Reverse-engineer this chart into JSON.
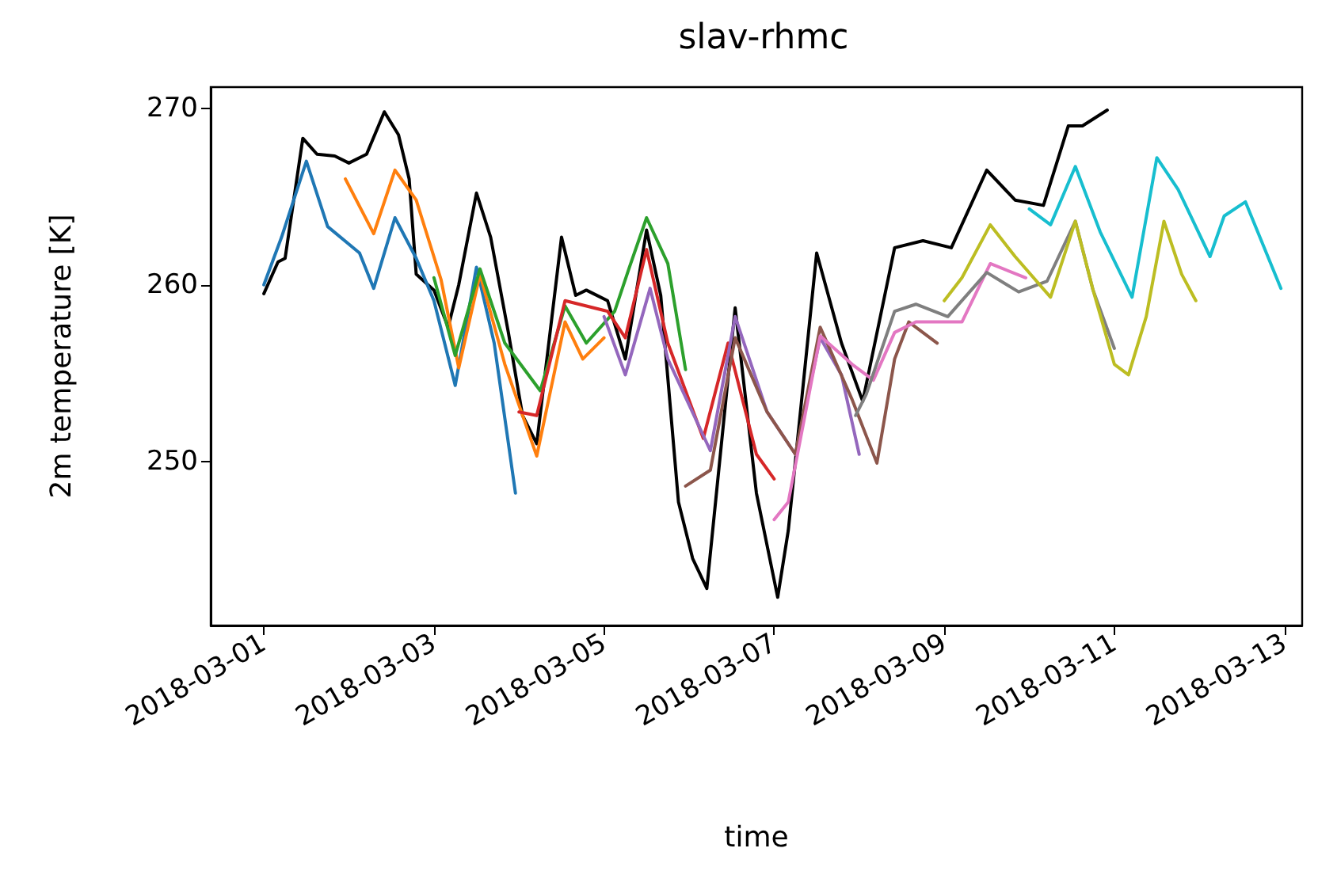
{
  "chart_data": {
    "type": "line",
    "title": "slav-rhmc",
    "xlabel": "time",
    "ylabel": "2m temperature [K]",
    "xlim": [
      "2018-02-28T09:00",
      "2018-03-13T05:00"
    ],
    "xticks": [
      "2018-03-01",
      "2018-03-03",
      "2018-03-05",
      "2018-03-07",
      "2018-03-09",
      "2018-03-11",
      "2018-03-13"
    ],
    "ylim": [
      240.7,
      271.2
    ],
    "yticks": [
      250,
      260,
      270
    ],
    "grid": false,
    "marker": "none",
    "line_style": "solid",
    "series": [
      {
        "color": "#000000",
        "x": [
          "2018-03-01T00:00",
          "2018-03-01T04:00",
          "2018-03-01T06:00",
          "2018-03-01T11:00",
          "2018-03-01T15:00",
          "2018-03-01T20:00",
          "2018-03-02T00:00",
          "2018-03-02T05:00",
          "2018-03-02T10:00",
          "2018-03-02T14:00",
          "2018-03-02T17:00",
          "2018-03-02T19:00",
          "2018-03-03T00:00",
          "2018-03-03T04:00",
          "2018-03-03T07:00",
          "2018-03-03T12:00",
          "2018-03-03T16:00",
          "2018-03-03T21:00",
          "2018-03-04T01:00",
          "2018-03-04T05:00",
          "2018-03-04T12:00",
          "2018-03-04T16:00",
          "2018-03-04T19:00",
          "2018-03-05T01:00",
          "2018-03-05T06:00",
          "2018-03-05T12:00",
          "2018-03-05T16:00",
          "2018-03-05T21:00",
          "2018-03-06T01:00",
          "2018-03-06T05:00",
          "2018-03-06T13:00",
          "2018-03-06T19:00",
          "2018-03-07T01:00",
          "2018-03-07T04:00",
          "2018-03-07T12:00",
          "2018-03-07T19:00",
          "2018-03-08T01:00",
          "2018-03-08T10:00",
          "2018-03-08T18:00",
          "2018-03-09T02:00",
          "2018-03-09T12:00",
          "2018-03-09T20:00",
          "2018-03-10T04:00",
          "2018-03-10T11:00",
          "2018-03-10T15:00",
          "2018-03-10T22:00"
        ],
        "values": [
          259.5,
          261.3,
          261.5,
          268.3,
          267.4,
          267.3,
          266.9,
          267.4,
          269.8,
          268.5,
          266.0,
          260.6,
          259.7,
          257.6,
          260.0,
          265.2,
          262.7,
          257.3,
          252.6,
          251.0,
          262.7,
          259.4,
          259.7,
          259.1,
          255.8,
          263.1,
          259.4,
          247.7,
          244.5,
          242.8,
          258.7,
          248.2,
          242.3,
          246.1,
          261.8,
          256.7,
          253.4,
          262.1,
          262.5,
          262.1,
          266.5,
          264.8,
          264.5,
          269.0,
          269.0,
          269.9
        ]
      },
      {
        "color": "#1f77b4",
        "x": [
          "2018-03-01T00:00",
          "2018-03-01T05:00",
          "2018-03-01T12:00",
          "2018-03-01T18:00",
          "2018-03-02T03:00",
          "2018-03-02T07:00",
          "2018-03-02T13:00",
          "2018-03-02T19:00",
          "2018-03-03T00:00",
          "2018-03-03T06:00",
          "2018-03-03T12:00",
          "2018-03-03T17:00",
          "2018-03-03T23:00"
        ],
        "values": [
          260.0,
          262.7,
          267.0,
          263.3,
          261.8,
          259.8,
          263.8,
          261.5,
          259.1,
          254.3,
          261.0,
          256.7,
          248.2
        ]
      },
      {
        "color": "#ff7f0e",
        "x": [
          "2018-03-01T23:00",
          "2018-03-02T07:00",
          "2018-03-02T13:00",
          "2018-03-02T19:00",
          "2018-03-03T02:00",
          "2018-03-03T07:00",
          "2018-03-03T13:00",
          "2018-03-03T20:00",
          "2018-03-04T05:00",
          "2018-03-04T13:00",
          "2018-03-04T18:00",
          "2018-03-05T00:00"
        ],
        "values": [
          266.0,
          262.9,
          266.5,
          264.8,
          260.3,
          255.3,
          260.6,
          255.5,
          250.3,
          257.9,
          255.8,
          257.0
        ]
      },
      {
        "color": "#2ca02c",
        "x": [
          "2018-03-03T00:00",
          "2018-03-03T06:00",
          "2018-03-03T13:00",
          "2018-03-03T20:00",
          "2018-03-04T06:00",
          "2018-03-04T13:00",
          "2018-03-04T19:00",
          "2018-03-05T03:00",
          "2018-03-05T07:00",
          "2018-03-05T12:00",
          "2018-03-05T18:00",
          "2018-03-05T23:00"
        ],
        "values": [
          260.4,
          256.0,
          260.9,
          256.7,
          254.0,
          258.8,
          256.7,
          258.5,
          260.9,
          263.8,
          261.2,
          255.2
        ]
      },
      {
        "color": "#d62728",
        "x": [
          "2018-03-04T00:00",
          "2018-03-04T05:00",
          "2018-03-04T13:00",
          "2018-03-05T01:00",
          "2018-03-05T06:00",
          "2018-03-05T12:00",
          "2018-03-05T18:00",
          "2018-03-06T04:00",
          "2018-03-06T11:00",
          "2018-03-06T19:00",
          "2018-03-07T00:00"
        ],
        "values": [
          252.8,
          252.6,
          259.1,
          258.5,
          257.0,
          262.0,
          256.7,
          251.3,
          256.7,
          250.4,
          249.0
        ]
      },
      {
        "color": "#9467bd",
        "x": [
          "2018-03-05T00:00",
          "2018-03-05T06:00",
          "2018-03-05T13:00",
          "2018-03-05T18:00",
          "2018-03-06T06:00",
          "2018-03-06T13:00",
          "2018-03-06T22:00",
          "2018-03-07T06:00",
          "2018-03-07T13:00",
          "2018-03-07T19:00",
          "2018-03-08T00:00"
        ],
        "values": [
          258.2,
          254.9,
          259.8,
          255.8,
          250.6,
          258.2,
          252.8,
          250.4,
          257.0,
          254.9,
          250.4
        ]
      },
      {
        "color": "#8c564b",
        "x": [
          "2018-03-05T23:00",
          "2018-03-06T06:00",
          "2018-03-06T13:00",
          "2018-03-06T22:00",
          "2018-03-07T06:00",
          "2018-03-07T13:00",
          "2018-03-07T22:00",
          "2018-03-08T05:00",
          "2018-03-08T10:00",
          "2018-03-08T14:00",
          "2018-03-08T22:00"
        ],
        "values": [
          248.6,
          249.5,
          257.0,
          252.8,
          250.4,
          257.6,
          253.5,
          249.9,
          255.8,
          257.9,
          256.7
        ]
      },
      {
        "color": "#e377c2",
        "x": [
          "2018-03-07T00:00",
          "2018-03-07T04:00",
          "2018-03-07T13:00",
          "2018-03-07T22:00",
          "2018-03-08T04:00",
          "2018-03-08T10:00",
          "2018-03-08T16:00",
          "2018-03-09T05:00",
          "2018-03-09T13:00",
          "2018-03-09T23:00"
        ],
        "values": [
          246.7,
          247.7,
          257.1,
          255.5,
          254.6,
          257.3,
          257.9,
          257.9,
          261.2,
          260.4
        ]
      },
      {
        "color": "#7f7f7f",
        "x": [
          "2018-03-07T23:00",
          "2018-03-08T02:00",
          "2018-03-08T10:00",
          "2018-03-08T16:00",
          "2018-03-09T01:00",
          "2018-03-09T12:00",
          "2018-03-09T21:00",
          "2018-03-10T05:00",
          "2018-03-10T13:00",
          "2018-03-10T18:00",
          "2018-03-11T00:00"
        ],
        "values": [
          252.6,
          253.8,
          258.5,
          258.9,
          258.2,
          260.7,
          259.6,
          260.2,
          263.6,
          259.7,
          256.4
        ]
      },
      {
        "color": "#bcbd22",
        "x": [
          "2018-03-09T00:00",
          "2018-03-09T05:00",
          "2018-03-09T13:00",
          "2018-03-09T20:00",
          "2018-03-10T06:00",
          "2018-03-10T13:00",
          "2018-03-10T18:00",
          "2018-03-11T00:00",
          "2018-03-11T04:00",
          "2018-03-11T09:00",
          "2018-03-11T14:00",
          "2018-03-11T19:00",
          "2018-03-11T23:00"
        ],
        "values": [
          259.1,
          260.4,
          263.4,
          261.6,
          259.3,
          263.6,
          259.7,
          255.5,
          254.9,
          258.2,
          263.6,
          260.6,
          259.1
        ]
      },
      {
        "color": "#17becf",
        "x": [
          "2018-03-10T00:00",
          "2018-03-10T06:00",
          "2018-03-10T13:00",
          "2018-03-10T20:00",
          "2018-03-11T05:00",
          "2018-03-11T12:00",
          "2018-03-11T18:00",
          "2018-03-12T03:00",
          "2018-03-12T07:00",
          "2018-03-12T13:00",
          "2018-03-12T23:00"
        ],
        "values": [
          264.3,
          263.4,
          266.7,
          263.0,
          259.3,
          267.2,
          265.4,
          261.6,
          263.9,
          264.7,
          259.8
        ]
      }
    ]
  }
}
